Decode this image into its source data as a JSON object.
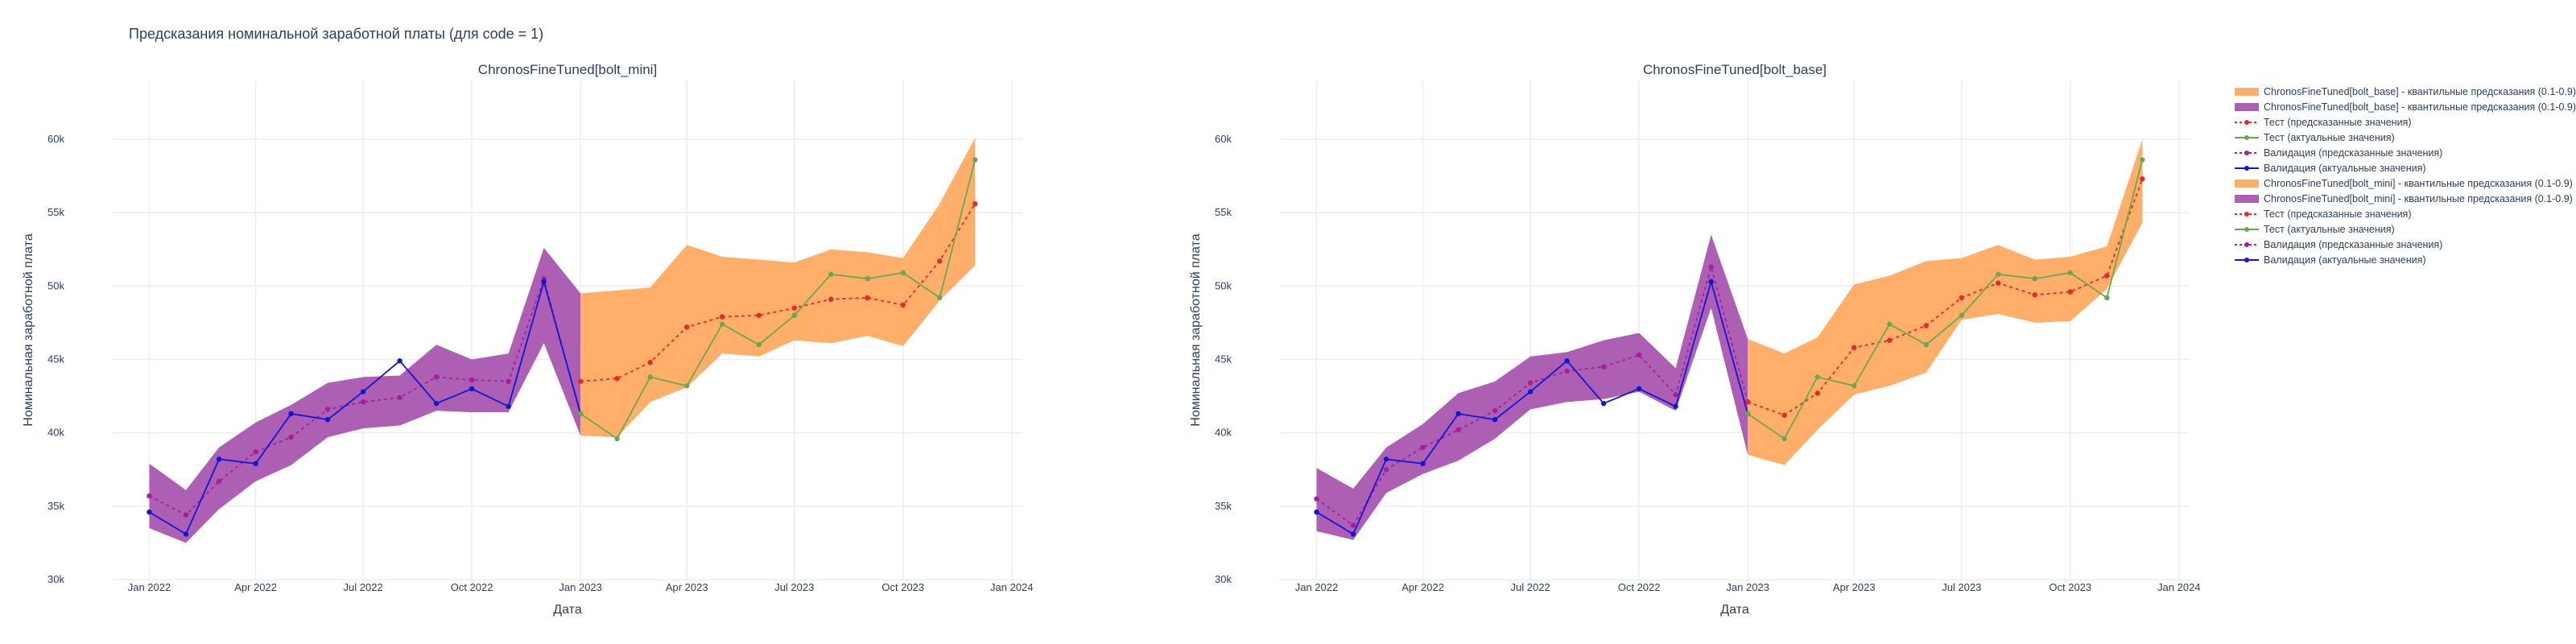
{
  "figure": {
    "title": "Предсказания номинальной заработной платы (для code = 1)",
    "xlabel": "Дата",
    "ylabel": "Номинальная заработной плата"
  },
  "colors": {
    "band_base": "#ffa65a",
    "band_mini": "#a44fab",
    "test_pred": "#e8282a",
    "test_actual": "#6aa84f",
    "val_pred": "#a020a0",
    "val_actual": "#1414d4"
  },
  "chart_data": [
    {
      "type": "line",
      "title": "ChronosFineTuned[bolt_mini]",
      "xlabel": "Дата",
      "ylabel": "Номинальная заработной плата",
      "ylim": [
        30000,
        64000
      ],
      "xlim": [
        "2021-12-01",
        "2024-01-10"
      ],
      "y_ticks": [
        {
          "value": 30000,
          "label": "30k"
        },
        {
          "value": 35000,
          "label": "35k"
        },
        {
          "value": 40000,
          "label": "40k"
        },
        {
          "value": 45000,
          "label": "45k"
        },
        {
          "value": 50000,
          "label": "50k"
        },
        {
          "value": 55000,
          "label": "55k"
        },
        {
          "value": 60000,
          "label": "60k"
        }
      ],
      "x_ticks": [
        {
          "value": "2022-01-01",
          "label": "Jan 2022"
        },
        {
          "value": "2022-04-01",
          "label": "Apr 2022"
        },
        {
          "value": "2022-07-01",
          "label": "Jul 2022"
        },
        {
          "value": "2022-10-01",
          "label": "Oct 2022"
        },
        {
          "value": "2023-01-01",
          "label": "Jan 2023"
        },
        {
          "value": "2023-04-01",
          "label": "Apr 2023"
        },
        {
          "value": "2023-07-01",
          "label": "Jul 2023"
        },
        {
          "value": "2023-10-01",
          "label": "Oct 2023"
        },
        {
          "value": "2024-01-01",
          "label": "Jan 2024"
        }
      ],
      "grid": true,
      "bands": [
        {
          "color_key": "band_mini",
          "x": [
            "2022-01-01",
            "2022-02-01",
            "2022-03-01",
            "2022-04-01",
            "2022-05-01",
            "2022-06-01",
            "2022-07-01",
            "2022-08-01",
            "2022-09-01",
            "2022-10-01",
            "2022-11-01",
            "2022-12-01",
            "2023-01-01"
          ],
          "lower": [
            33500,
            32500,
            34800,
            36700,
            37800,
            39700,
            40300,
            40500,
            41500,
            41400,
            41400,
            46100,
            39800
          ],
          "upper": [
            37900,
            36100,
            39000,
            40700,
            41900,
            43400,
            43800,
            43900,
            46000,
            45000,
            45400,
            52600,
            49500
          ]
        },
        {
          "color_key": "band_base",
          "x": [
            "2023-01-01",
            "2023-02-01",
            "2023-03-01",
            "2023-04-01",
            "2023-05-01",
            "2023-06-01",
            "2023-07-01",
            "2023-08-01",
            "2023-09-01",
            "2023-10-01",
            "2023-11-01",
            "2023-12-01"
          ],
          "lower": [
            39800,
            39700,
            42100,
            43100,
            45400,
            45200,
            46300,
            46100,
            46600,
            45900,
            49000,
            51400
          ],
          "upper": [
            49500,
            49700,
            49900,
            52800,
            52000,
            51800,
            51600,
            52500,
            52300,
            51900,
            55600,
            60100
          ]
        }
      ],
      "series": [
        {
          "name": "Валидация (предсказанные значения)",
          "color_key": "val_pred",
          "dash": true,
          "x": [
            "2022-01-01",
            "2022-02-01",
            "2022-03-01",
            "2022-04-01",
            "2022-05-01",
            "2022-06-01",
            "2022-07-01",
            "2022-08-01",
            "2022-09-01",
            "2022-10-01",
            "2022-11-01",
            "2022-12-01",
            "2023-01-01"
          ],
          "y": [
            35700,
            34400,
            36700,
            38700,
            39700,
            41600,
            42100,
            42400,
            43800,
            43600,
            43500,
            50500,
            41300
          ]
        },
        {
          "name": "Валидация (актуальные значения)",
          "color_key": "val_actual",
          "dash": false,
          "x": [
            "2022-01-01",
            "2022-02-01",
            "2022-03-01",
            "2022-04-01",
            "2022-05-01",
            "2022-06-01",
            "2022-07-01",
            "2022-08-01",
            "2022-09-01",
            "2022-10-01",
            "2022-11-01",
            "2022-12-01",
            "2023-01-01"
          ],
          "y": [
            34600,
            33100,
            38200,
            37900,
            41300,
            40900,
            42800,
            44900,
            42000,
            43000,
            41800,
            50300,
            41300
          ]
        },
        {
          "name": "Тест (предсказанные значения)",
          "color_key": "test_pred",
          "dash": true,
          "x": [
            "2023-01-01",
            "2023-02-01",
            "2023-03-01",
            "2023-04-01",
            "2023-05-01",
            "2023-06-01",
            "2023-07-01",
            "2023-08-01",
            "2023-09-01",
            "2023-10-01",
            "2023-11-01",
            "2023-12-01"
          ],
          "y": [
            43500,
            43700,
            44800,
            47200,
            47900,
            48000,
            48500,
            49100,
            49200,
            48700,
            51700,
            55600
          ]
        },
        {
          "name": "Тест (актуальные значения)",
          "color_key": "test_actual",
          "dash": false,
          "x": [
            "2023-01-01",
            "2023-02-01",
            "2023-03-01",
            "2023-04-01",
            "2023-05-01",
            "2023-06-01",
            "2023-07-01",
            "2023-08-01",
            "2023-09-01",
            "2023-10-01",
            "2023-11-01",
            "2023-12-01"
          ],
          "y": [
            41300,
            39600,
            43800,
            43200,
            47400,
            46000,
            48000,
            50800,
            50500,
            50900,
            49200,
            58600
          ]
        }
      ]
    },
    {
      "type": "line",
      "title": "ChronosFineTuned[bolt_base]",
      "xlabel": "Дата",
      "ylabel": "Номинальная заработной плата",
      "ylim": [
        30000,
        64000
      ],
      "xlim": [
        "2021-12-01",
        "2024-01-10"
      ],
      "y_ticks": [
        {
          "value": 30000,
          "label": "30k"
        },
        {
          "value": 35000,
          "label": "35k"
        },
        {
          "value": 40000,
          "label": "40k"
        },
        {
          "value": 45000,
          "label": "45k"
        },
        {
          "value": 50000,
          "label": "50k"
        },
        {
          "value": 55000,
          "label": "55k"
        },
        {
          "value": 60000,
          "label": "60k"
        }
      ],
      "x_ticks": [
        {
          "value": "2022-01-01",
          "label": "Jan 2022"
        },
        {
          "value": "2022-04-01",
          "label": "Apr 2022"
        },
        {
          "value": "2022-07-01",
          "label": "Jul 2022"
        },
        {
          "value": "2022-10-01",
          "label": "Oct 2022"
        },
        {
          "value": "2023-01-01",
          "label": "Jan 2023"
        },
        {
          "value": "2023-04-01",
          "label": "Apr 2023"
        },
        {
          "value": "2023-07-01",
          "label": "Jul 2023"
        },
        {
          "value": "2023-10-01",
          "label": "Oct 2023"
        },
        {
          "value": "2024-01-01",
          "label": "Jan 2024"
        }
      ],
      "grid": true,
      "bands": [
        {
          "color_key": "band_mini",
          "x": [
            "2022-01-01",
            "2022-02-01",
            "2022-03-01",
            "2022-04-01",
            "2022-05-01",
            "2022-06-01",
            "2022-07-01",
            "2022-08-01",
            "2022-09-01",
            "2022-10-01",
            "2022-11-01",
            "2022-12-01",
            "2023-01-01"
          ],
          "lower": [
            33300,
            32700,
            35900,
            37200,
            38100,
            39600,
            41600,
            42100,
            42300,
            42800,
            41500,
            48500,
            38500
          ],
          "upper": [
            37600,
            36200,
            39000,
            40600,
            42700,
            43500,
            45200,
            45500,
            46300,
            46800,
            44400,
            53500,
            46400
          ]
        },
        {
          "color_key": "band_base",
          "x": [
            "2023-01-01",
            "2023-02-01",
            "2023-03-01",
            "2023-04-01",
            "2023-05-01",
            "2023-06-01",
            "2023-07-01",
            "2023-08-01",
            "2023-09-01",
            "2023-10-01",
            "2023-11-01",
            "2023-12-01"
          ],
          "lower": [
            38500,
            37800,
            40200,
            42600,
            43200,
            44100,
            47700,
            48100,
            47500,
            47600,
            49800,
            54300
          ],
          "upper": [
            46400,
            45400,
            46500,
            50100,
            50700,
            51700,
            51900,
            52800,
            51800,
            52000,
            52700,
            60000
          ]
        }
      ],
      "series": [
        {
          "name": "Валидация (предсказанные значения)",
          "color_key": "val_pred",
          "dash": true,
          "x": [
            "2022-01-01",
            "2022-02-01",
            "2022-03-01",
            "2022-04-01",
            "2022-05-01",
            "2022-06-01",
            "2022-07-01",
            "2022-08-01",
            "2022-09-01",
            "2022-10-01",
            "2022-11-01",
            "2022-12-01",
            "2023-01-01"
          ],
          "y": [
            35500,
            33700,
            37500,
            39000,
            40200,
            41500,
            43400,
            44200,
            44500,
            45300,
            42600,
            51300,
            42100
          ]
        },
        {
          "name": "Валидация (актуальные значения)",
          "color_key": "val_actual",
          "dash": false,
          "x": [
            "2022-01-01",
            "2022-02-01",
            "2022-03-01",
            "2022-04-01",
            "2022-05-01",
            "2022-06-01",
            "2022-07-01",
            "2022-08-01",
            "2022-09-01",
            "2022-10-01",
            "2022-11-01",
            "2022-12-01",
            "2023-01-01"
          ],
          "y": [
            34600,
            33100,
            38200,
            37900,
            41300,
            40900,
            42800,
            44900,
            42000,
            43000,
            41800,
            50300,
            41300
          ]
        },
        {
          "name": "Тест (предсказанные значения)",
          "color_key": "test_pred",
          "dash": true,
          "x": [
            "2023-01-01",
            "2023-02-01",
            "2023-03-01",
            "2023-04-01",
            "2023-05-01",
            "2023-06-01",
            "2023-07-01",
            "2023-08-01",
            "2023-09-01",
            "2023-10-01",
            "2023-11-01",
            "2023-12-01"
          ],
          "y": [
            42100,
            41200,
            42700,
            45800,
            46300,
            47300,
            49200,
            50200,
            49400,
            49600,
            50700,
            57300
          ]
        },
        {
          "name": "Тест (актуальные значения)",
          "color_key": "test_actual",
          "dash": false,
          "x": [
            "2023-01-01",
            "2023-02-01",
            "2023-03-01",
            "2023-04-01",
            "2023-05-01",
            "2023-06-01",
            "2023-07-01",
            "2023-08-01",
            "2023-09-01",
            "2023-10-01",
            "2023-11-01",
            "2023-12-01"
          ],
          "y": [
            41300,
            39600,
            43800,
            43200,
            47400,
            46000,
            48000,
            50800,
            50500,
            50900,
            49200,
            58600
          ]
        }
      ]
    }
  ],
  "legend": {
    "placement": "top-right",
    "items": [
      {
        "label": "ChronosFineTuned[bolt_base] - квантильные предсказания (0.1-0.9)",
        "kind": "band",
        "color_key": "band_base"
      },
      {
        "label": "ChronosFineTuned[bolt_base] - квантильные предсказания (0.1-0.9)",
        "kind": "band",
        "color_key": "band_mini"
      },
      {
        "label": "Тест (предсказанные значения)",
        "kind": "dash",
        "color_key": "test_pred"
      },
      {
        "label": "Тест (актуальные значения)",
        "kind": "solid",
        "color_key": "test_actual"
      },
      {
        "label": "Валидация (предсказанные значения)",
        "kind": "dash",
        "color_key": "val_pred"
      },
      {
        "label": "Валидация (актуальные значения)",
        "kind": "solid",
        "color_key": "val_actual"
      },
      {
        "label": "ChronosFineTuned[bolt_mini] - квантильные предсказания (0.1-0.9)",
        "kind": "band",
        "color_key": "band_base"
      },
      {
        "label": "ChronosFineTuned[bolt_mini] - квантильные предсказания (0.1-0.9)",
        "kind": "band",
        "color_key": "band_mini"
      },
      {
        "label": "Тест (предсказанные значения)",
        "kind": "dash",
        "color_key": "test_pred"
      },
      {
        "label": "Тест (актуальные значения)",
        "kind": "solid",
        "color_key": "test_actual"
      },
      {
        "label": "Валидация (предсказанные значения)",
        "kind": "dash",
        "color_key": "val_pred"
      },
      {
        "label": "Валидация (актуальные значения)",
        "kind": "solid",
        "color_key": "val_actual"
      }
    ]
  }
}
